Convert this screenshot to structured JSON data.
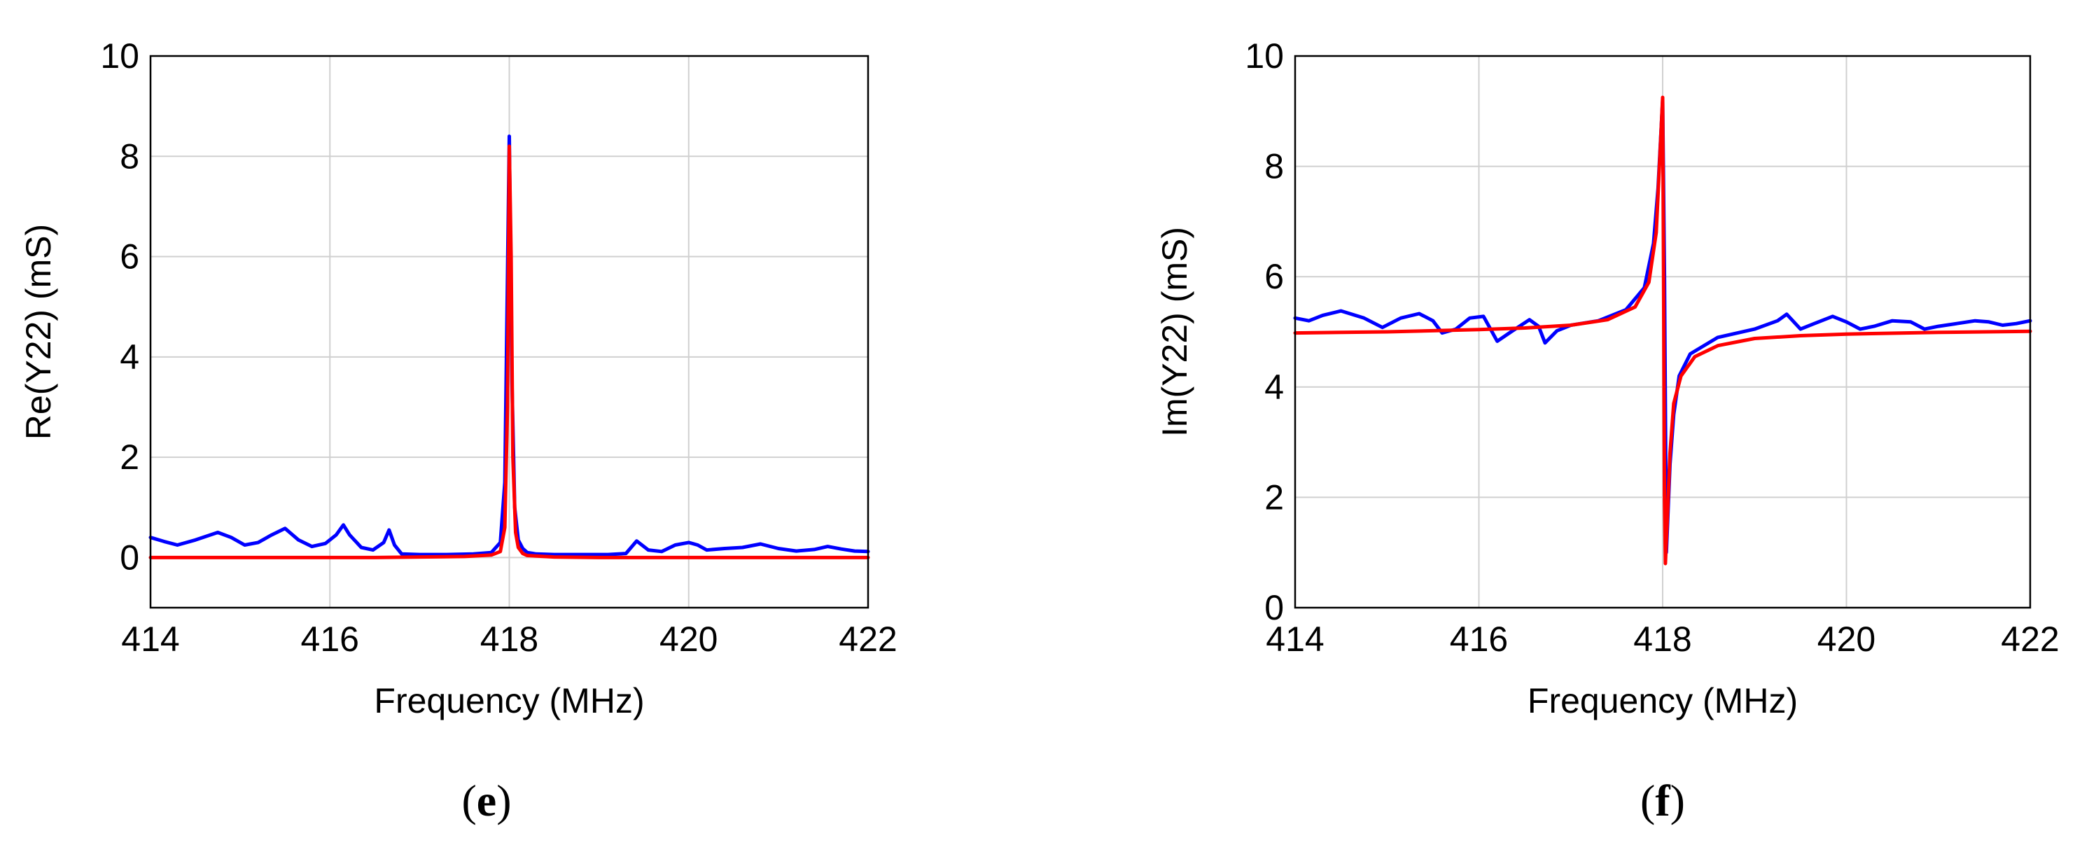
{
  "chart_data": [
    {
      "type": "line",
      "panel_label": "(e)",
      "xlabel": "Frequency (MHz)",
      "ylabel": "Re(Y22) (mS)",
      "xlim": [
        414,
        422
      ],
      "ylim": [
        -1,
        10
      ],
      "xticks": [
        414,
        416,
        418,
        420,
        422
      ],
      "yticks": [
        0,
        2,
        4,
        6,
        8,
        10
      ],
      "grid": true,
      "series": [
        {
          "color": "#0000ff",
          "x": [
            414.0,
            414.15,
            414.3,
            414.5,
            414.75,
            414.9,
            415.05,
            415.2,
            415.35,
            415.5,
            415.65,
            415.8,
            415.95,
            416.07,
            416.15,
            416.22,
            416.35,
            416.48,
            416.6,
            416.66,
            416.72,
            416.8,
            417.0,
            417.3,
            417.6,
            417.8,
            417.9,
            417.95,
            418.0,
            418.03,
            418.06,
            418.1,
            418.15,
            418.2,
            418.3,
            418.5,
            418.8,
            419.1,
            419.3,
            419.42,
            419.55,
            419.7,
            419.85,
            420.0,
            420.1,
            420.2,
            420.4,
            420.6,
            420.8,
            421.0,
            421.2,
            421.4,
            421.55,
            421.7,
            421.85,
            422.0
          ],
          "y": [
            0.4,
            0.32,
            0.25,
            0.35,
            0.5,
            0.4,
            0.25,
            0.3,
            0.45,
            0.58,
            0.35,
            0.22,
            0.28,
            0.45,
            0.65,
            0.45,
            0.2,
            0.15,
            0.3,
            0.55,
            0.25,
            0.07,
            0.06,
            0.06,
            0.07,
            0.1,
            0.3,
            1.5,
            8.4,
            3.5,
            1.0,
            0.35,
            0.18,
            0.1,
            0.07,
            0.06,
            0.06,
            0.06,
            0.08,
            0.33,
            0.15,
            0.12,
            0.25,
            0.3,
            0.25,
            0.15,
            0.18,
            0.2,
            0.27,
            0.18,
            0.13,
            0.16,
            0.22,
            0.17,
            0.13,
            0.12
          ]
        },
        {
          "color": "#ff0000",
          "x": [
            414.0,
            415.0,
            416.0,
            416.5,
            417.0,
            417.5,
            417.8,
            417.9,
            417.95,
            417.98,
            418.0,
            418.02,
            418.04,
            418.07,
            418.1,
            418.15,
            418.2,
            418.5,
            419.0,
            420.0,
            421.0,
            422.0
          ],
          "y": [
            0.0,
            0.0,
            0.0,
            0.0,
            0.01,
            0.02,
            0.05,
            0.12,
            0.6,
            3.0,
            8.2,
            6.0,
            2.0,
            0.5,
            0.2,
            0.08,
            0.04,
            0.01,
            0.0,
            0.0,
            0.0,
            0.0
          ]
        }
      ]
    },
    {
      "type": "line",
      "panel_label": "(f)",
      "xlabel": "Frequency (MHz)",
      "ylabel": "Im(Y22) (mS)",
      "xlim": [
        414,
        422
      ],
      "ylim": [
        0,
        10
      ],
      "xticks": [
        414,
        416,
        418,
        420,
        422
      ],
      "yticks": [
        0,
        2,
        4,
        6,
        8,
        10
      ],
      "grid": true,
      "series": [
        {
          "color": "#0000ff",
          "x": [
            414.0,
            414.15,
            414.3,
            414.5,
            414.75,
            414.95,
            415.15,
            415.35,
            415.5,
            415.6,
            415.75,
            415.9,
            416.05,
            416.2,
            416.35,
            416.55,
            416.65,
            416.72,
            416.85,
            417.0,
            417.3,
            417.6,
            417.8,
            417.9,
            417.95,
            418.0,
            418.02,
            418.04,
            418.06,
            418.08,
            418.12,
            418.18,
            418.3,
            418.6,
            419.0,
            419.25,
            419.35,
            419.5,
            419.65,
            419.85,
            420.0,
            420.15,
            420.3,
            420.5,
            420.7,
            420.85,
            421.0,
            421.2,
            421.4,
            421.55,
            421.7,
            421.85,
            422.0
          ],
          "y": [
            5.25,
            5.2,
            5.3,
            5.38,
            5.25,
            5.08,
            5.25,
            5.33,
            5.2,
            4.98,
            5.05,
            5.25,
            5.28,
            4.83,
            5.0,
            5.22,
            5.1,
            4.8,
            5.02,
            5.12,
            5.2,
            5.4,
            5.8,
            6.6,
            7.6,
            9.2,
            6.0,
            1.0,
            1.8,
            2.6,
            3.5,
            4.2,
            4.6,
            4.9,
            5.05,
            5.2,
            5.32,
            5.05,
            5.15,
            5.28,
            5.18,
            5.05,
            5.1,
            5.2,
            5.18,
            5.05,
            5.1,
            5.15,
            5.2,
            5.18,
            5.12,
            5.15,
            5.2
          ]
        },
        {
          "color": "#ff0000",
          "x": [
            414.0,
            415.0,
            416.0,
            416.5,
            417.0,
            417.4,
            417.7,
            417.85,
            417.93,
            417.97,
            418.0,
            418.01,
            418.02,
            418.03,
            418.05,
            418.08,
            418.12,
            418.2,
            418.35,
            418.6,
            419.0,
            419.5,
            420.0,
            421.0,
            422.0
          ],
          "y": [
            4.98,
            5.0,
            5.04,
            5.07,
            5.12,
            5.22,
            5.45,
            5.9,
            6.8,
            8.2,
            9.25,
            6.0,
            2.0,
            0.8,
            1.6,
            2.8,
            3.7,
            4.2,
            4.55,
            4.75,
            4.88,
            4.93,
            4.96,
            4.99,
            5.01
          ]
        }
      ]
    }
  ]
}
